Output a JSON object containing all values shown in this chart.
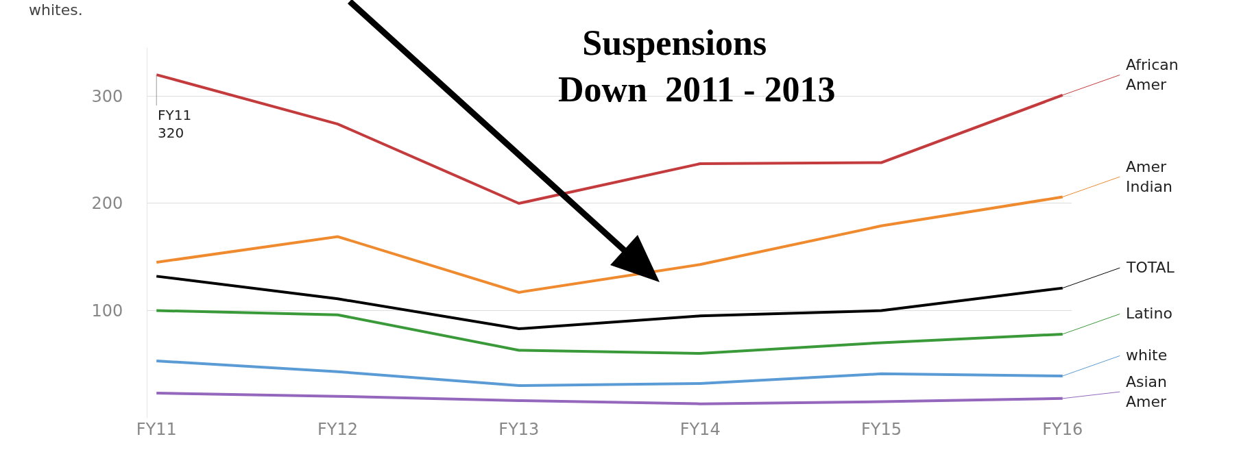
{
  "chart_data": {
    "type": "line",
    "categories": [
      "FY11",
      "FY12",
      "FY13",
      "FY14",
      "FY15",
      "FY16"
    ],
    "series": [
      {
        "name": "African Amer",
        "color": "#c43b3d",
        "values": [
          320,
          274,
          200,
          237,
          238,
          301
        ]
      },
      {
        "name": "Amer Indian",
        "color": "#ef8a2f",
        "values": [
          145,
          169,
          117,
          143,
          179,
          206
        ]
      },
      {
        "name": "TOTAL",
        "color": "#000000",
        "values": [
          132,
          111,
          83,
          95,
          100,
          121
        ]
      },
      {
        "name": "Latino",
        "color": "#3a9a3a",
        "values": [
          100,
          96,
          63,
          60,
          70,
          78
        ]
      },
      {
        "name": "white",
        "color": "#5b9bd5",
        "values": [
          53,
          43,
          30,
          32,
          41,
          39
        ]
      },
      {
        "name": "Asian Amer",
        "color": "#9467bd",
        "values": [
          23,
          20,
          16,
          13,
          15,
          18
        ]
      }
    ],
    "ylim": [
      0,
      345
    ],
    "yticks": [
      100,
      200,
      300
    ],
    "grid": "y",
    "legend": "right",
    "marker": "none",
    "line_style": "solid",
    "annotations": [
      {
        "text": "FY11\n320",
        "x": "FY11",
        "y": 320
      },
      "Suspensions\n     Down  2011 - 2013",
      "whites."
    ]
  }
}
